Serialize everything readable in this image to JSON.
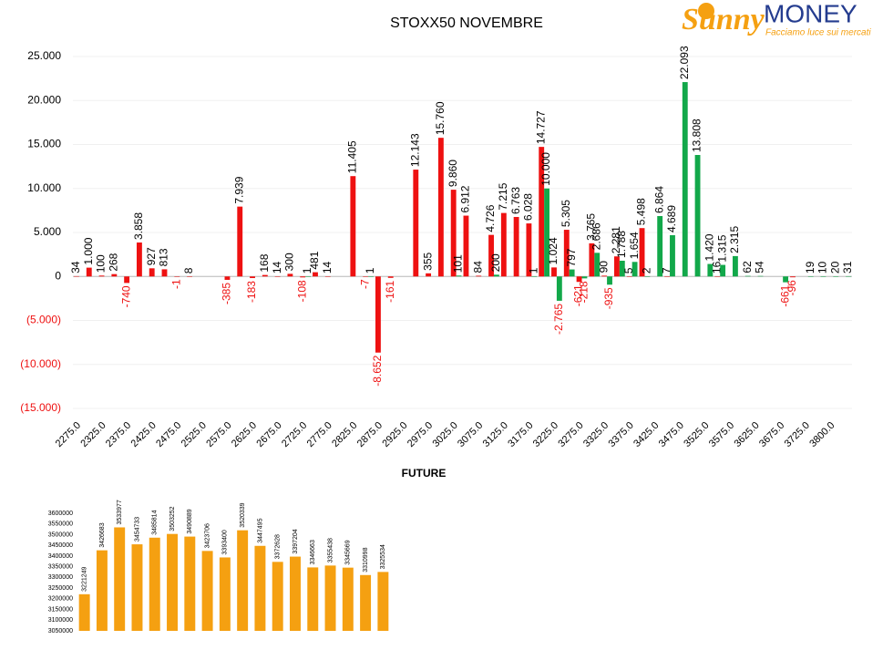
{
  "logo": {
    "brand1": "Sunny",
    "brand2": "MONEY",
    "tagline": "Facciamo luce sui mercati"
  },
  "chart_data": [
    {
      "type": "bar",
      "title": "STOXX50 NOVEMBRE",
      "categories": [
        "2275.0",
        null,
        "2325.0",
        null,
        "2375.0",
        null,
        "2425.0",
        null,
        "2475.0",
        null,
        "2525.0",
        null,
        "2575.0",
        null,
        "2625.0",
        null,
        "2675.0",
        null,
        "2725.0",
        null,
        "2775.0",
        null,
        "2825.0",
        null,
        "2875.0",
        null,
        "2925.0",
        null,
        "2975.0",
        null,
        "3025.0",
        null,
        "3075.0",
        null,
        "3125.0",
        null,
        "3175.0",
        null,
        "3225.0",
        null,
        "3275.0",
        null,
        "3325.0",
        null,
        "3375.0",
        null,
        "3425.0",
        null,
        "3475.0",
        null,
        "3525.0",
        null,
        "3575.0",
        null,
        "3625.0",
        null,
        "3675.0",
        null,
        "3725.0",
        null,
        "3800.0",
        null
      ],
      "series": [
        {
          "color": "#ee1111",
          "values": [
            34,
            1000,
            100,
            268,
            -740,
            3858,
            927,
            813,
            -1,
            8,
            null,
            null,
            -385,
            7939,
            -183,
            168,
            14,
            300,
            -108,
            481,
            14,
            null,
            11405,
            -7,
            -8652,
            -161,
            null,
            12143,
            355,
            15760,
            9860,
            6912,
            84,
            4726,
            7215,
            6763,
            6028,
            14727,
            1024,
            5305,
            -621,
            3765,
            90,
            2281,
            5,
            5498,
            null,
            7,
            null,
            null,
            null,
            16,
            null,
            null,
            null,
            null,
            null,
            -96,
            null,
            null,
            null,
            null
          ],
          "value_labels": [
            "34",
            "1.000",
            "100",
            "268",
            "-740",
            "3.858",
            "927",
            "813",
            "-1",
            "8",
            null,
            null,
            "-385",
            "7.939",
            "-183",
            "168",
            "14",
            "300",
            "-108",
            "481",
            "14",
            null,
            "11.405",
            "-7",
            "-8.652",
            "-161",
            null,
            "12.143",
            "355",
            "15.760",
            "9.860",
            "6.912",
            "84",
            "4.726",
            "7.215",
            "6.763",
            "6.028",
            "14.727",
            "1.024",
            "5.305",
            "-621",
            "3.765",
            "90",
            "2.281",
            "5",
            "5.498",
            null,
            "7",
            null,
            null,
            null,
            "16",
            null,
            null,
            null,
            null,
            null,
            "-96",
            null,
            null,
            null,
            null
          ]
        },
        {
          "color": "#12a84a",
          "values": [
            null,
            null,
            null,
            null,
            null,
            null,
            null,
            null,
            null,
            null,
            null,
            null,
            null,
            null,
            null,
            null,
            null,
            null,
            1,
            null,
            null,
            null,
            null,
            1,
            null,
            null,
            null,
            null,
            null,
            null,
            101,
            null,
            null,
            200,
            null,
            null,
            1,
            10000,
            -2765,
            797,
            -218,
            2686,
            -935,
            1788,
            1654,
            2,
            6864,
            4689,
            22093,
            13808,
            1420,
            1315,
            2315,
            62,
            54,
            null,
            -661,
            null,
            19,
            10,
            20,
            31
          ],
          "value_labels": [
            null,
            null,
            null,
            null,
            null,
            null,
            null,
            null,
            null,
            null,
            null,
            null,
            null,
            null,
            null,
            null,
            null,
            null,
            "1",
            null,
            null,
            null,
            null,
            "1",
            null,
            null,
            null,
            null,
            null,
            null,
            "101",
            null,
            null,
            "200",
            null,
            null,
            "1",
            "10.000",
            "-2.765",
            "797",
            "-218",
            "2.686",
            "-935",
            "1.788",
            "1.654",
            "2",
            "6.864",
            "4.689",
            "22.093",
            "13.808",
            "1.420",
            "1.315",
            "2.315",
            "62",
            "54",
            null,
            "-661",
            null,
            "19",
            "10",
            "20",
            "31"
          ]
        }
      ],
      "ylim": [
        -15000,
        25000
      ],
      "yticks": [
        {
          "value": -15000,
          "label": "(15.000)"
        },
        {
          "value": -10000,
          "label": "(10.000)"
        },
        {
          "value": -5000,
          "label": "(5.000)"
        },
        0,
        {
          "value": 5000,
          "label": "5.000"
        },
        {
          "value": 10000,
          "label": "10.000"
        },
        {
          "value": 15000,
          "label": "15.000"
        },
        {
          "value": 20000,
          "label": "20.000"
        },
        {
          "value": 25000,
          "label": "25.000"
        }
      ],
      "grid": true
    },
    {
      "type": "bar",
      "title": "FUTURE",
      "categories": [
        null,
        null,
        null,
        null,
        null,
        null,
        null,
        null,
        null,
        null,
        null,
        null,
        null,
        null,
        null,
        null,
        null,
        null
      ],
      "values": [
        3221249,
        3426683,
        3533977,
        3454733,
        3485814,
        3503252,
        3490889,
        3423706,
        3393400,
        3520339,
        3447495,
        3372628,
        3397204,
        3346663,
        3355438,
        3345669,
        3310998,
        3325534
      ],
      "color": "#f5a011",
      "ylim": [
        3050000,
        3600000
      ],
      "yticks": [
        3050000,
        3100000,
        3150000,
        3200000,
        3250000,
        3300000,
        3350000,
        3400000,
        3450000,
        3500000,
        3550000,
        3600000
      ],
      "grid": false
    }
  ]
}
